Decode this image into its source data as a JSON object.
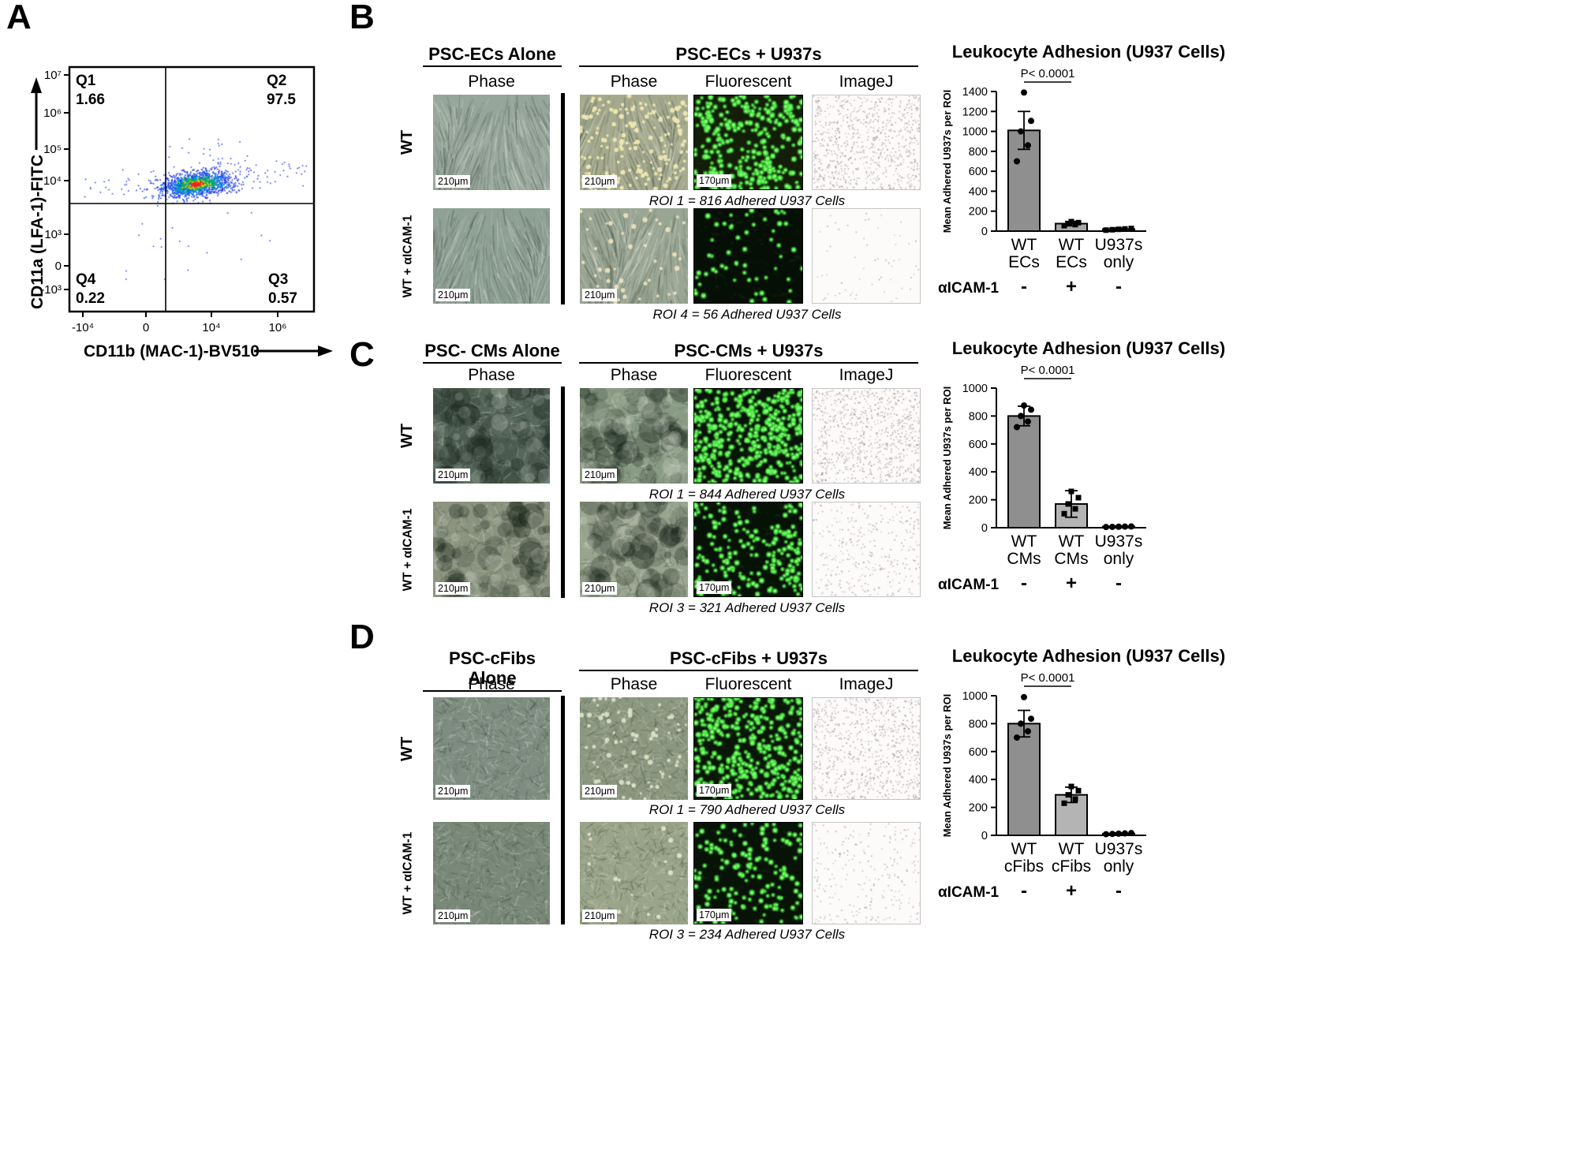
{
  "panel_a": {
    "label": "A",
    "x_axis_label": "CD11b (MAC-1)-BV510",
    "y_axis_label": "CD11a (LFA-1)-FITC",
    "q1_name": "Q1",
    "q1_value": "1.66",
    "q2_name": "Q2",
    "q2_value": "97.5",
    "q3_name": "Q3",
    "q3_value": "0.57",
    "q4_name": "Q4",
    "q4_value": "0.22",
    "y_ticks": [
      "10⁷",
      "10⁶",
      "10⁵",
      "10⁴",
      "10³",
      "0",
      "-10³"
    ],
    "x_ticks": [
      "-10⁴",
      "0",
      "10⁴",
      "10⁶"
    ]
  },
  "scales": {
    "s210": "210μm",
    "s170": "170μm"
  },
  "panels": [
    {
      "label": "B",
      "alone_header": "PSC-ECs Alone",
      "plus_header": "PSC-ECs + U937s",
      "col1": "Phase",
      "col2": "Phase",
      "col3": "Fluorescent",
      "col4": "ImageJ",
      "row1_label": "WT",
      "row2_label": "WT + αICAM-1",
      "caption1": "ROI 1 = 816 Adhered U937 Cells",
      "caption2": "ROI 4 = 56 Adhered U937 Cells"
    },
    {
      "label": "C",
      "alone_header": "PSC- CMs Alone",
      "plus_header": "PSC-CMs + U937s",
      "col1": "Phase",
      "col2": "Phase",
      "col3": "Fluorescent",
      "col4": "ImageJ",
      "row1_label": "WT",
      "row2_label": "WT + αICAM-1",
      "caption1": "ROI 1 = 844 Adhered U937 Cells",
      "caption2": "ROI 3 = 321 Adhered U937 Cells"
    },
    {
      "label": "D",
      "alone_header": "PSC-cFibs Alone",
      "plus_header": "PSC-cFibs + U937s",
      "col1": "Phase",
      "col2": "Phase",
      "col3": "Fluorescent",
      "col4": "ImageJ",
      "row1_label": "WT",
      "row2_label": "WT + αICAM-1",
      "caption1": "ROI 1 = 790 Adhered U937 Cells",
      "caption2": "ROI 3 = 234 Adhered U937 Cells"
    }
  ],
  "chart_data": [
    {
      "id": "flow-cytometry",
      "type": "scatter",
      "title": "",
      "xlabel": "CD11b (MAC-1)-BV510",
      "ylabel": "CD11a (LFA-1)-FITC",
      "x_ticks": [
        "-10⁴",
        "0",
        "10⁴",
        "10⁶"
      ],
      "y_ticks": [
        "10⁷",
        "10⁶",
        "10⁵",
        "10⁴",
        "10³",
        "0",
        "-10³"
      ],
      "quadrant_percentages": {
        "Q1": 1.66,
        "Q2": 97.5,
        "Q3": 0.57,
        "Q4": 0.22
      },
      "population": "single dense population centered near x=10⁴, y=10⁴ (Q2)"
    },
    {
      "id": "leukocyte-adhesion-ecs",
      "type": "bar",
      "title": "Leukocyte Adhesion (U937 Cells)",
      "ylabel": "Mean Adhered U937s per ROI",
      "ylim": [
        0,
        1400
      ],
      "yticks": [
        0,
        200,
        400,
        600,
        800,
        1000,
        1200,
        1400
      ],
      "categories": [
        "WT ECs",
        "WT ECs",
        "U937s only"
      ],
      "category_lines": [
        [
          "WT",
          "ECs"
        ],
        [
          "WT",
          "ECs"
        ],
        [
          "U937s",
          "only"
        ]
      ],
      "alpha_icam_label": "αICAM-1",
      "alpha_icam": [
        "-",
        "+",
        "-"
      ],
      "values": [
        1010,
        75,
        20
      ],
      "errors": [
        190,
        22,
        10
      ],
      "points": [
        [
          700,
          860,
          1000,
          1105,
          1390
        ],
        [
          55,
          65,
          75,
          85,
          95
        ],
        [
          10,
          14,
          18,
          22,
          26
        ]
      ],
      "markers": [
        "circle",
        "square",
        "square"
      ],
      "bar_colors": [
        "#8f8f8f",
        "#a8a8a8",
        "#8f8f8f"
      ],
      "significance": "P< 0.0001"
    },
    {
      "id": "leukocyte-adhesion-cms",
      "type": "bar",
      "title": "Leukocyte Adhesion (U937 Cells)",
      "ylabel": "Mean Adhered U937s per ROI",
      "ylim": [
        0,
        1000
      ],
      "yticks": [
        0,
        200,
        400,
        600,
        800,
        1000
      ],
      "categories": [
        "WT CMs",
        "WT CMs",
        "U937s only"
      ],
      "category_lines": [
        [
          "WT",
          "CMs"
        ],
        [
          "WT",
          "CMs"
        ],
        [
          "U937s",
          "only"
        ]
      ],
      "alpha_icam_label": "αICAM-1",
      "alpha_icam": [
        "-",
        "+",
        "-"
      ],
      "values": [
        800,
        170,
        8
      ],
      "errors": [
        70,
        95,
        5
      ],
      "points": [
        [
          720,
          760,
          800,
          845,
          875
        ],
        [
          100,
          135,
          170,
          215,
          260
        ],
        [
          5,
          6,
          7,
          8,
          9
        ]
      ],
      "markers": [
        "circle",
        "square",
        "circle"
      ],
      "bar_colors": [
        "#8f8f8f",
        "#b4b4b4",
        "#8f8f8f"
      ],
      "significance": "P< 0.0001"
    },
    {
      "id": "leukocyte-adhesion-cfibs",
      "type": "bar",
      "title": "Leukocyte Adhesion (U937 Cells)",
      "ylabel": "Mean Adhered U937s per ROI",
      "ylim": [
        0,
        1000
      ],
      "yticks": [
        0,
        200,
        400,
        600,
        800,
        1000
      ],
      "categories": [
        "WT cFibs",
        "WT cFibs",
        "U937s only"
      ],
      "category_lines": [
        [
          "WT",
          "cFibs"
        ],
        [
          "WT",
          "cFibs"
        ],
        [
          "U937s",
          "only"
        ]
      ],
      "alpha_icam_label": "αICAM-1",
      "alpha_icam": [
        "-",
        "+",
        "-"
      ],
      "values": [
        800,
        290,
        12
      ],
      "errors": [
        95,
        55,
        6
      ],
      "points": [
        [
          700,
          745,
          800,
          835,
          990
        ],
        [
          230,
          260,
          290,
          320,
          350
        ],
        [
          8,
          10,
          12,
          14,
          16
        ]
      ],
      "markers": [
        "circle",
        "square",
        "circle"
      ],
      "bar_colors": [
        "#8f8f8f",
        "#b4b4b4",
        "#8f8f8f"
      ],
      "significance": "P< 0.0001"
    }
  ]
}
